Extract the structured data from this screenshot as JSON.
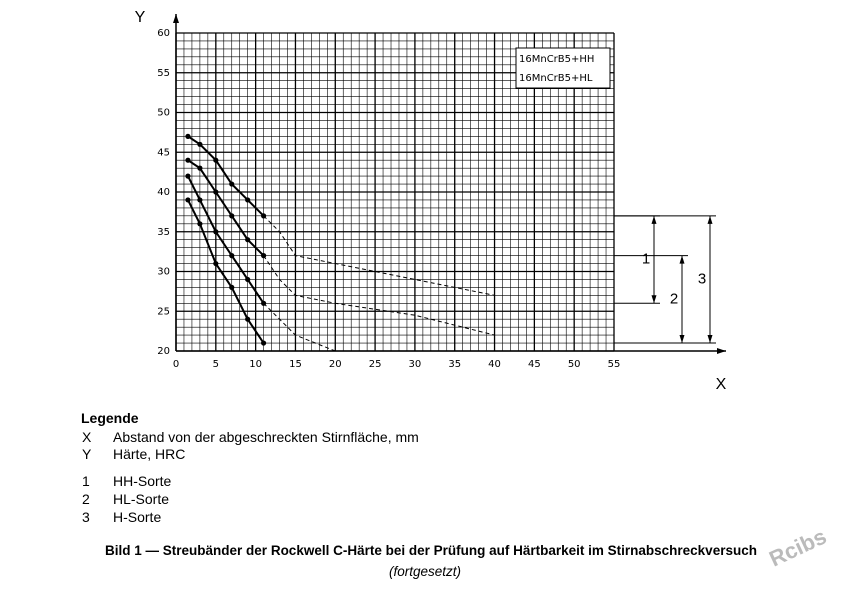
{
  "chart_data": {
    "type": "line",
    "x_label": "X",
    "y_label": "Y",
    "xlim": [
      0,
      55
    ],
    "ylim": [
      20,
      60
    ],
    "xticks": [
      0,
      5,
      10,
      15,
      20,
      25,
      30,
      35,
      40,
      45,
      50,
      55
    ],
    "yticks": [
      20,
      25,
      30,
      35,
      40,
      45,
      50,
      55,
      60
    ],
    "grid": true,
    "grid_minor_step": 1,
    "x": [
      1.5,
      3,
      5,
      7,
      9,
      11,
      13,
      15,
      20,
      30,
      40
    ],
    "series": [
      {
        "color": "#000000",
        "style": "solid",
        "markers": true,
        "values": [
          47,
          46,
          44,
          41,
          39,
          37,
          null,
          null,
          null,
          null,
          null
        ]
      },
      {
        "color": "#000000",
        "style": "dashed",
        "markers": false,
        "values": [
          null,
          null,
          null,
          null,
          null,
          37,
          35,
          32,
          31,
          29,
          27
        ]
      },
      {
        "color": "#000000",
        "style": "solid",
        "markers": true,
        "values": [
          44,
          43,
          40,
          37,
          34,
          32,
          null,
          null,
          null,
          null,
          null
        ]
      },
      {
        "color": "#000000",
        "style": "dashed",
        "markers": false,
        "values": [
          null,
          null,
          null,
          null,
          null,
          32,
          29,
          27,
          26,
          24.5,
          22
        ]
      },
      {
        "color": "#000000",
        "style": "solid",
        "markers": true,
        "values": [
          42,
          39,
          35,
          32,
          29,
          26,
          null,
          null,
          null,
          null,
          null
        ]
      },
      {
        "color": "#000000",
        "style": "dashed",
        "markers": false,
        "values": [
          null,
          null,
          null,
          null,
          null,
          26,
          24,
          22,
          20,
          null,
          null
        ]
      },
      {
        "color": "#000000",
        "style": "solid",
        "markers": true,
        "values": [
          39,
          36,
          31,
          28,
          24,
          21,
          null,
          null,
          null,
          null,
          null
        ]
      }
    ],
    "annotations": [
      "16MnCrB5+HH",
      "16MnCrB5+HL"
    ],
    "bands": [
      {
        "label": "1",
        "from": 37,
        "to": 26
      },
      {
        "label": "2",
        "from": 32,
        "to": 21
      },
      {
        "label": "3",
        "from": 37,
        "to": 21
      }
    ]
  },
  "legend_block": {
    "title": "Legende",
    "axes": [
      {
        "key": "X",
        "text": "Abstand von der abgeschreckten Stirnfläche, mm"
      },
      {
        "key": "Y",
        "text": "Härte, HRC"
      }
    ],
    "items": [
      {
        "key": "1",
        "text": "HH-Sorte"
      },
      {
        "key": "2",
        "text": "HL-Sorte"
      },
      {
        "key": "3",
        "text": "H-Sorte"
      }
    ]
  },
  "caption": {
    "title": "Bild 1 — Streubänder der Rockwell C-Härte bei der Prüfung auf Härtbarkeit im Stirnabschreckversuch",
    "note": "(fortgesetzt)"
  },
  "watermark": "Rcibs"
}
